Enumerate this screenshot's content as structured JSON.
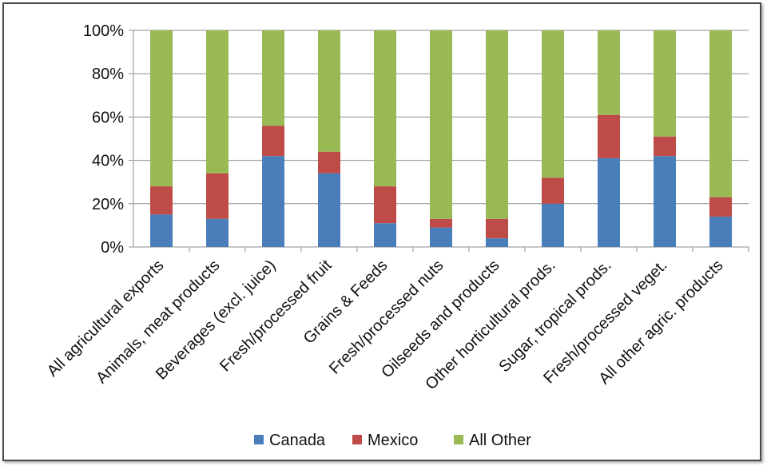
{
  "chart_data": {
    "type": "bar",
    "stacked": true,
    "title": "",
    "xlabel": "",
    "ylabel": "",
    "ylim": [
      0,
      100
    ],
    "y_ticks": [
      "0%",
      "20%",
      "40%",
      "60%",
      "80%",
      "100%"
    ],
    "grid": true,
    "legend_position": "bottom",
    "categories": [
      "All agricultural exports",
      "Animals, meat products",
      "Beverages (excl. juice)",
      "Fresh/processed fruit",
      "Grains & Feeds",
      "Fresh/processed nuts",
      "Oilseeds and products",
      "Other horticultural prods.",
      "Sugar, tropical prods.",
      "Fresh/processed veget.",
      "All other agric. products"
    ],
    "series": [
      {
        "name": "Canada",
        "color": "#4a7ebb",
        "values": [
          15,
          13,
          42,
          34,
          11,
          9,
          4,
          20,
          41,
          42,
          14
        ]
      },
      {
        "name": "Mexico",
        "color": "#be4b48",
        "values": [
          13,
          21,
          14,
          10,
          17,
          4,
          9,
          12,
          20,
          9,
          9
        ]
      },
      {
        "name": "All Other",
        "color": "#98b954",
        "values": [
          72,
          66,
          44,
          56,
          72,
          87,
          87,
          68,
          39,
          49,
          77
        ]
      }
    ]
  }
}
